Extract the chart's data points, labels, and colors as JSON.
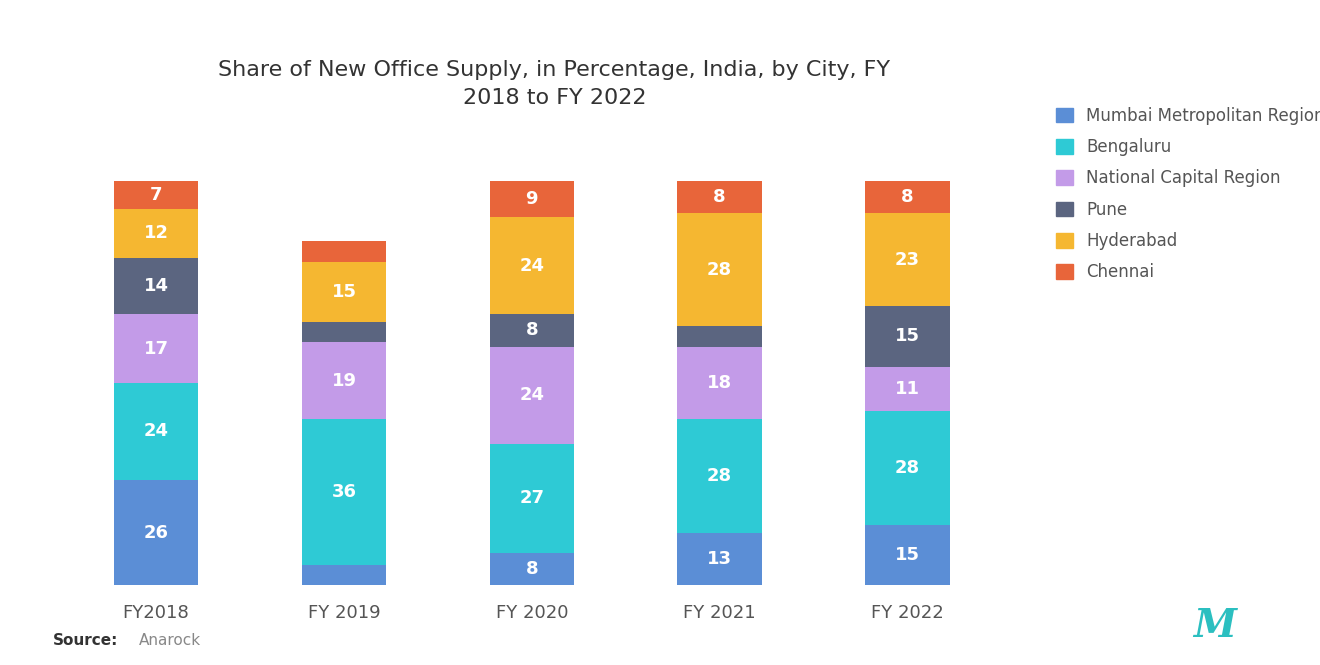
{
  "title": "Share of New Office Supply, in Percentage, India, by City, FY\n2018 to FY 2022",
  "categories": [
    "FY2018",
    "FY 2019",
    "FY 2020",
    "FY 2021",
    "FY 2022"
  ],
  "series_order": [
    "Mumbai Metropolitan Region",
    "Bengaluru",
    "National Capital Region",
    "Pune",
    "Hyderabad",
    "Chennai"
  ],
  "series": {
    "Mumbai Metropolitan Region": [
      26,
      5,
      8,
      13,
      15
    ],
    "Bengaluru": [
      24,
      36,
      27,
      28,
      28
    ],
    "National Capital Region": [
      17,
      19,
      24,
      18,
      11
    ],
    "Pune": [
      14,
      5,
      8,
      5,
      15
    ],
    "Hyderabad": [
      12,
      15,
      24,
      28,
      23
    ],
    "Chennai": [
      7,
      5,
      9,
      8,
      8
    ]
  },
  "label_min": 7,
  "colors": {
    "Mumbai Metropolitan Region": "#5B8ED6",
    "Bengaluru": "#2ECAD5",
    "National Capital Region": "#C39BE8",
    "Pune": "#5B6580",
    "Hyderabad": "#F5B731",
    "Chennai": "#E8653A"
  },
  "source": "Anarock",
  "background_color": "#ffffff",
  "bar_width": 0.45,
  "title_fontsize": 16,
  "label_fontsize": 13,
  "tick_fontsize": 13,
  "legend_fontsize": 12
}
